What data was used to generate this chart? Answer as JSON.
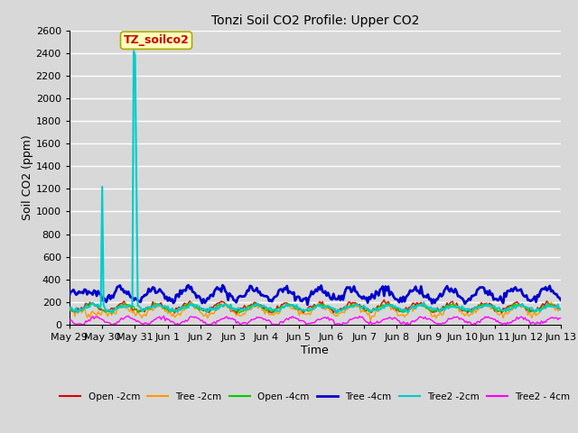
{
  "title": "Tonzi Soil CO2 Profile: Upper CO2",
  "xlabel": "Time",
  "ylabel": "Soil CO2 (ppm)",
  "ylim": [
    0,
    2500
  ],
  "background_color": "#d8d8d8",
  "plot_bg_color": "#d8d8d8",
  "grid_color": "#ffffff",
  "annotation_text": "TZ_soilco2",
  "annotation_bg": "#ffffbb",
  "annotation_border": "#aaaa00",
  "annotation_text_color": "#cc0000",
  "series": {
    "Open_2cm": {
      "color": "#dd0000",
      "label": "Open -2cm"
    },
    "Tree_2cm": {
      "color": "#ff9900",
      "label": "Tree -2cm"
    },
    "Open_4cm": {
      "color": "#00cc00",
      "label": "Open -4cm"
    },
    "Tree_4cm": {
      "color": "#0000cc",
      "label": "Tree -4cm"
    },
    "Tree2_2cm": {
      "color": "#00cccc",
      "label": "Tree2 -2cm"
    },
    "Tree2_4cm": {
      "color": "#ff00ff",
      "label": "Tree2 - 4cm"
    }
  },
  "xtick_labels": [
    "May 29",
    "May 30",
    "May 31",
    "Jun 1",
    "Jun 2",
    "Jun 3",
    "Jun 4",
    "Jun 5",
    "Jun 6",
    "Jun 7",
    "Jun 8",
    "Jun 9",
    "Jun 10",
    "Jun 11",
    "Jun 12",
    "Jun 13"
  ],
  "xtick_positions": [
    0,
    1,
    2,
    3,
    4,
    5,
    6,
    7,
    8,
    9,
    10,
    11,
    12,
    13,
    14,
    15
  ]
}
